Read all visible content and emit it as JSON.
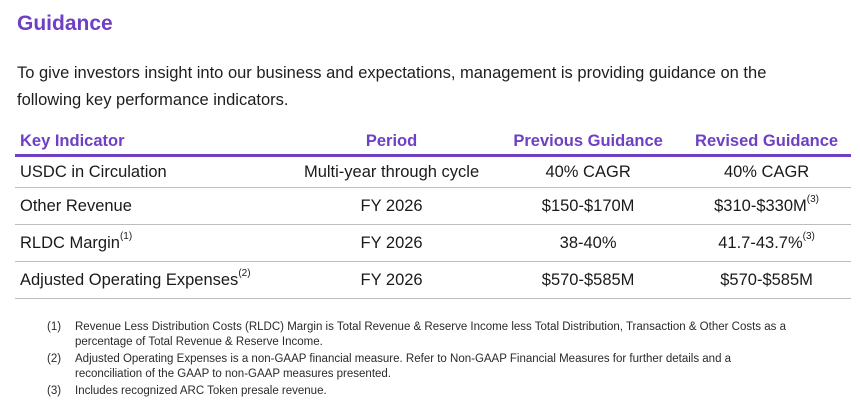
{
  "title": "Guidance",
  "intro": "To give investors insight into our business and expectations, management is providing guidance on the following key performance indicators.",
  "table": {
    "headers": [
      "Key Indicator",
      "Period",
      "Previous Guidance",
      "Revised Guidance"
    ],
    "rows": [
      {
        "indicator": "USDC in Circulation",
        "indicator_sup": "",
        "period": "Multi-year through cycle",
        "previous": "40% CAGR",
        "revised": "40% CAGR",
        "revised_sup": ""
      },
      {
        "indicator": "Other Revenue",
        "indicator_sup": "",
        "period": "FY 2026",
        "previous": "$150-$170M",
        "revised": "$310-$330M",
        "revised_sup": "(3)"
      },
      {
        "indicator": "RLDC Margin",
        "indicator_sup": "(1)",
        "period": "FY 2026",
        "previous": "38-40%",
        "revised": "41.7-43.7%",
        "revised_sup": "(3)"
      },
      {
        "indicator": "Adjusted Operating Expenses",
        "indicator_sup": "(2)",
        "period": "FY 2026",
        "previous": "$570-$585M",
        "revised": "$570-$585M",
        "revised_sup": ""
      }
    ]
  },
  "footnotes": [
    {
      "num": "(1)",
      "text": "Revenue Less Distribution Costs (RLDC) Margin is Total Revenue & Reserve Income less Total Distribution, Transaction & Other Costs as a percentage of Total Revenue & Reserve Income."
    },
    {
      "num": "(2)",
      "text": "Adjusted Operating Expenses is a non-GAAP financial measure. Refer to Non-GAAP Financial Measures for further details and a reconciliation of the GAAP to non-GAAP measures presented."
    },
    {
      "num": "(3)",
      "text": "Includes recognized ARC Token presale revenue."
    }
  ],
  "colors": {
    "accent": "#6f3fc4",
    "rule": "#bdbdbd"
  }
}
